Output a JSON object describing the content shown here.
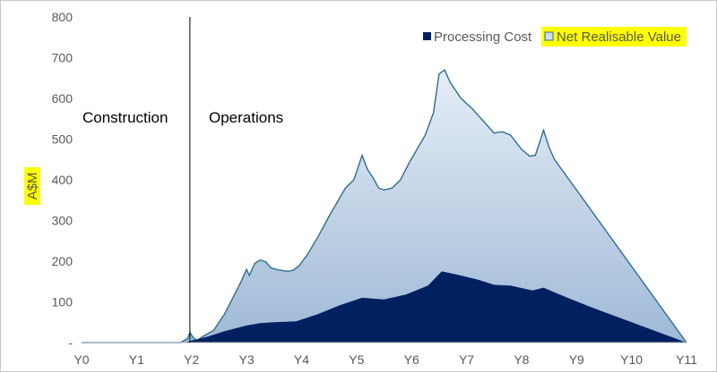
{
  "chart_data": {
    "type": "area",
    "title": "",
    "xlabel": "",
    "ylabel": "A$M",
    "ylim": [
      0,
      800
    ],
    "yticks": [
      "0",
      "100",
      "200",
      "300",
      "400",
      "500",
      "600",
      "700",
      "800"
    ],
    "yticks_values": [
      0,
      100,
      200,
      300,
      400,
      500,
      600,
      700,
      800
    ],
    "xlim": [
      0,
      11
    ],
    "xticks": [
      "Y0",
      "Y1",
      "Y2",
      "Y3",
      "Y4",
      "Y5",
      "Y6",
      "Y7",
      "Y8",
      "Y9",
      "Y10",
      "Y11"
    ],
    "grid": false,
    "legend_position": "top-right",
    "phase_labels": {
      "construction": "Construction",
      "operations": "Operations"
    },
    "divider_x": 1.97,
    "series": [
      {
        "name": "Net Realisable Value",
        "color_fill_top": "#dce6f1",
        "color_fill_bottom": "#a9c1dc",
        "color_line": "#2f6d8c",
        "points": [
          [
            0,
            0
          ],
          [
            1.8,
            0
          ],
          [
            1.93,
            10
          ],
          [
            1.97,
            25
          ],
          [
            2.03,
            12
          ],
          [
            2.1,
            5
          ],
          [
            2.2,
            15
          ],
          [
            2.4,
            30
          ],
          [
            2.6,
            70
          ],
          [
            2.75,
            110
          ],
          [
            2.9,
            150
          ],
          [
            3.0,
            180
          ],
          [
            3.05,
            165
          ],
          [
            3.15,
            195
          ],
          [
            3.25,
            203
          ],
          [
            3.35,
            198
          ],
          [
            3.45,
            183
          ],
          [
            3.6,
            178
          ],
          [
            3.75,
            175
          ],
          [
            3.85,
            178
          ],
          [
            3.95,
            188
          ],
          [
            4.1,
            215
          ],
          [
            4.3,
            260
          ],
          [
            4.5,
            310
          ],
          [
            4.65,
            345
          ],
          [
            4.8,
            380
          ],
          [
            4.95,
            400
          ],
          [
            5.05,
            440
          ],
          [
            5.1,
            460
          ],
          [
            5.2,
            425
          ],
          [
            5.3,
            405
          ],
          [
            5.4,
            380
          ],
          [
            5.5,
            375
          ],
          [
            5.65,
            380
          ],
          [
            5.8,
            400
          ],
          [
            5.95,
            440
          ],
          [
            6.1,
            475
          ],
          [
            6.25,
            510
          ],
          [
            6.4,
            565
          ],
          [
            6.5,
            660
          ],
          [
            6.6,
            670
          ],
          [
            6.7,
            640
          ],
          [
            6.9,
            600
          ],
          [
            7.1,
            575
          ],
          [
            7.3,
            545
          ],
          [
            7.5,
            515
          ],
          [
            7.65,
            518
          ],
          [
            7.8,
            510
          ],
          [
            8.0,
            475
          ],
          [
            8.15,
            458
          ],
          [
            8.25,
            460
          ],
          [
            8.4,
            522
          ],
          [
            8.5,
            480
          ],
          [
            8.6,
            450
          ],
          [
            9.0,
            375
          ],
          [
            11.0,
            0
          ]
        ]
      },
      {
        "name": "Processing Cost",
        "color": "#002060",
        "points": [
          [
            0,
            0
          ],
          [
            1.8,
            0
          ],
          [
            1.93,
            2
          ],
          [
            2.0,
            5
          ],
          [
            2.3,
            15
          ],
          [
            2.6,
            28
          ],
          [
            3.0,
            42
          ],
          [
            3.25,
            48
          ],
          [
            3.5,
            50
          ],
          [
            3.9,
            52
          ],
          [
            4.3,
            70
          ],
          [
            4.7,
            92
          ],
          [
            5.1,
            110
          ],
          [
            5.5,
            106
          ],
          [
            5.9,
            118
          ],
          [
            6.3,
            140
          ],
          [
            6.55,
            175
          ],
          [
            6.8,
            168
          ],
          [
            7.2,
            155
          ],
          [
            7.5,
            142
          ],
          [
            7.8,
            140
          ],
          [
            8.2,
            128
          ],
          [
            8.4,
            135
          ],
          [
            8.8,
            112
          ],
          [
            9.3,
            85
          ],
          [
            11.0,
            0
          ]
        ]
      }
    ]
  }
}
